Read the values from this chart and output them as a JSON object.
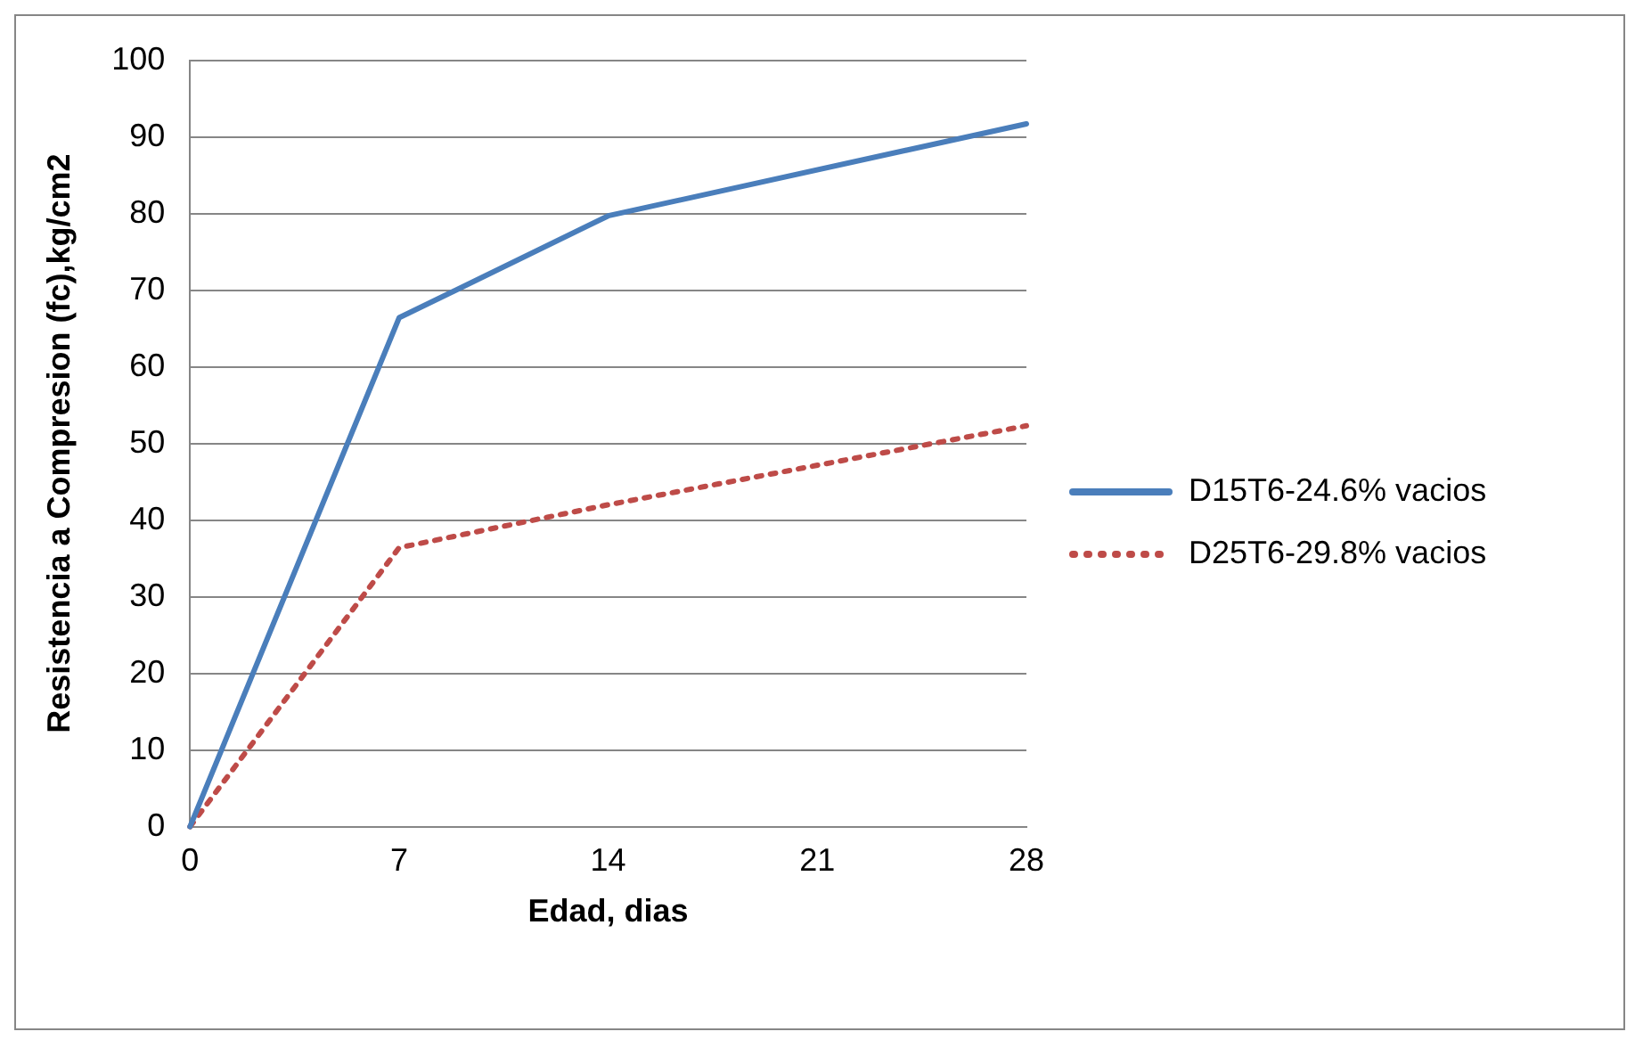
{
  "chart_data": {
    "type": "line",
    "xlabel": "Edad, dias",
    "ylabel": "Resistencia a Compresion (fc),kg/cm2",
    "x": [
      0,
      7,
      14,
      28
    ],
    "series": [
      {
        "name": "D15T6-24.6% vacios",
        "color": "#4a7ebb",
        "values": [
          0,
          66.4,
          79.7,
          91.7
        ],
        "line_style": "solid"
      },
      {
        "name": "D25T6-29.8% vacios",
        "color": "#be4b48",
        "values": [
          0,
          36.4,
          42,
          52.3
        ],
        "line_style": "dotted"
      }
    ],
    "xlim": [
      0,
      28
    ],
    "xticks": [
      0,
      7,
      14,
      21,
      28
    ],
    "ylim": [
      0,
      100
    ],
    "yticks": [
      0,
      10,
      20,
      30,
      40,
      50,
      60,
      70,
      80,
      90,
      100
    ],
    "grid": "y",
    "legend": "right",
    "marker": "none"
  }
}
